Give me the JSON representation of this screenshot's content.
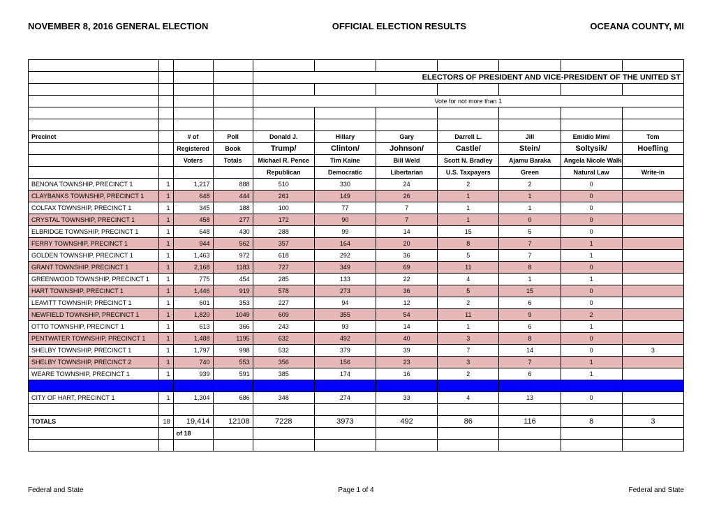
{
  "header": {
    "left": "NOVEMBER 8, 2016 GENERAL ELECTION",
    "center": "OFFICIAL ELECTION RESULTS",
    "right": "OCEANA COUNTY, MI"
  },
  "section_title": "ELECTORS OF PRESIDENT AND VICE-PRESIDENT OF THE UNITED ST",
  "vote_note": "Vote for not more than 1",
  "col_headers": {
    "precinct": "Precinct",
    "numof": "# of",
    "registered": "Registered",
    "voters": "Voters",
    "poll": "Poll",
    "book": "Book",
    "totals": "Totals"
  },
  "candidates": [
    {
      "first": "Donald J.",
      "ticket": "Trump/",
      "vp": "Michael R. Pence",
      "party": "Republican"
    },
    {
      "first": "Hillary",
      "ticket": "Clinton/",
      "vp": "Tim Kaine",
      "party": "Democratic"
    },
    {
      "first": "Gary",
      "ticket": "Johnson/",
      "vp": "Bill Weld",
      "party": "Libertarian"
    },
    {
      "first": "Darrell L.",
      "ticket": "Castle/",
      "vp": "Scott N. Bradley",
      "party": "U.S. Taxpayers"
    },
    {
      "first": "Jill",
      "ticket": "Stein/",
      "vp": "Ajamu Baraka",
      "party": "Green"
    },
    {
      "first": "Emidio Mimi",
      "ticket": "Soltysik/",
      "vp": "Angela Nicole Walker",
      "party": "Natural Law"
    },
    {
      "first": "Tom",
      "ticket": "Hoefling",
      "vp": "",
      "party": "Write-in"
    }
  ],
  "rows": [
    {
      "name": "BENONA TOWNSHIP, PRECINCT 1",
      "n": "1",
      "reg": "1,217",
      "poll": "888",
      "v": [
        "510",
        "330",
        "24",
        "2",
        "2",
        "0",
        ""
      ],
      "pink": false
    },
    {
      "name": "CLAYBANKS TOWNSHIP, PRECINCT 1",
      "n": "1",
      "reg": "648",
      "poll": "444",
      "v": [
        "261",
        "149",
        "26",
        "1",
        "1",
        "0",
        ""
      ],
      "pink": true
    },
    {
      "name": "COLFAX TOWNSHIP, PRECINCT 1",
      "n": "1",
      "reg": "345",
      "poll": "188",
      "v": [
        "100",
        "77",
        "7",
        "1",
        "1",
        "0",
        ""
      ],
      "pink": false
    },
    {
      "name": "CRYSTAL TOWNSHIP, PRECINCT 1",
      "n": "1",
      "reg": "458",
      "poll": "277",
      "v": [
        "172",
        "90",
        "7",
        "1",
        "0",
        "0",
        ""
      ],
      "pink": true
    },
    {
      "name": "ELBRIDGE TOWNSHIP, PRECINCT 1",
      "n": "1",
      "reg": "648",
      "poll": "430",
      "v": [
        "288",
        "99",
        "14",
        "15",
        "5",
        "0",
        ""
      ],
      "pink": false
    },
    {
      "name": "FERRY TOWNSHIP, PRECINCT 1",
      "n": "1",
      "reg": "944",
      "poll": "562",
      "v": [
        "357",
        "164",
        "20",
        "8",
        "7",
        "1",
        ""
      ],
      "pink": true
    },
    {
      "name": "GOLDEN TOWNSHIP, PRECINCT 1",
      "n": "1",
      "reg": "1,463",
      "poll": "972",
      "v": [
        "618",
        "292",
        "36",
        "5",
        "7",
        "1",
        ""
      ],
      "pink": false
    },
    {
      "name": "GRANT TOWNSHIP, PRECINCT 1",
      "n": "1",
      "reg": "2,168",
      "poll": "1183",
      "v": [
        "727",
        "349",
        "69",
        "11",
        "8",
        "0",
        ""
      ],
      "pink": true
    },
    {
      "name": "GREENWOOD TOWNSHIP, PRECINCT 1",
      "n": "1",
      "reg": "775",
      "poll": "454",
      "v": [
        "285",
        "133",
        "22",
        "4",
        "1",
        "1",
        ""
      ],
      "pink": false
    },
    {
      "name": "HART TOWNSHIP, PRECINCT 1",
      "n": "1",
      "reg": "1,446",
      "poll": "919",
      "v": [
        "578",
        "273",
        "36",
        "5",
        "15",
        "0",
        ""
      ],
      "pink": true
    },
    {
      "name": "LEAVITT TOWNSHIP, PRECINCT 1",
      "n": "1",
      "reg": "601",
      "poll": "353",
      "v": [
        "227",
        "94",
        "12",
        "2",
        "6",
        "0",
        ""
      ],
      "pink": false
    },
    {
      "name": "NEWFIELD TOWNSHIP, PRECINCT 1",
      "n": "1",
      "reg": "1,820",
      "poll": "1049",
      "v": [
        "609",
        "355",
        "54",
        "11",
        "9",
        "2",
        ""
      ],
      "pink": true
    },
    {
      "name": "OTTO TOWNSHIP, PRECINCT 1",
      "n": "1",
      "reg": "613",
      "poll": "366",
      "v": [
        "243",
        "93",
        "14",
        "1",
        "6",
        "1",
        ""
      ],
      "pink": false
    },
    {
      "name": "PENTWATER TOWNSHIP, PRECINCT 1",
      "n": "1",
      "reg": "1,488",
      "poll": "1195",
      "v": [
        "632",
        "492",
        "40",
        "3",
        "8",
        "0",
        ""
      ],
      "pink": true
    },
    {
      "name": "SHELBY TOWNSHIP, PRECINCT 1",
      "n": "1",
      "reg": "1,797",
      "poll": "998",
      "v": [
        "532",
        "379",
        "39",
        "7",
        "14",
        "0",
        "3"
      ],
      "pink": false
    },
    {
      "name": "SHELBY TOWNSHIP, PRECINCT 2",
      "n": "1",
      "reg": "740",
      "poll": "553",
      "v": [
        "356",
        "156",
        "23",
        "3",
        "7",
        "1",
        ""
      ],
      "pink": true
    },
    {
      "name": "WEARE TOWNSHIP, PRECINCT 1",
      "n": "1",
      "reg": "939",
      "poll": "591",
      "v": [
        "385",
        "174",
        "16",
        "2",
        "6",
        "1",
        ""
      ],
      "pink": false
    }
  ],
  "city_row": {
    "name": "CITY OF HART, PRECINCT 1",
    "n": "1",
    "reg": "1,304",
    "poll": "686",
    "v": [
      "348",
      "274",
      "33",
      "4",
      "13",
      "0",
      ""
    ]
  },
  "totals": {
    "label": "TOTALS",
    "n": "18",
    "reg": "19,414",
    "poll": "12108",
    "v": [
      "7228",
      "3973",
      "492",
      "86",
      "116",
      "8",
      "3"
    ],
    "ofnote": "of 18"
  },
  "footer": {
    "left": "Federal and State",
    "center": "Page 1 of 4",
    "right": "Federal and State"
  },
  "colors": {
    "pink": "#e6b8b8",
    "blue": "#0000ff",
    "border": "#000000",
    "bg": "#ffffff"
  }
}
